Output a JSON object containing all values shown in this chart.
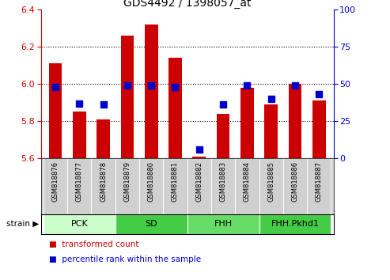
{
  "title": "GDS4492 / 1398057_at",
  "samples": [
    "GSM818876",
    "GSM818877",
    "GSM818878",
    "GSM818879",
    "GSM818880",
    "GSM818881",
    "GSM818882",
    "GSM818883",
    "GSM818884",
    "GSM818885",
    "GSM818886",
    "GSM818887"
  ],
  "transformed_count": [
    6.11,
    5.85,
    5.81,
    6.26,
    6.32,
    6.14,
    5.61,
    5.84,
    5.98,
    5.89,
    6.0,
    5.91
  ],
  "percentile_rank": [
    48,
    37,
    36,
    49,
    49,
    48,
    6,
    36,
    49,
    40,
    49,
    43
  ],
  "bar_bottom": 5.6,
  "ylim_left": [
    5.6,
    6.4
  ],
  "ylim_right": [
    0,
    100
  ],
  "yticks_left": [
    5.6,
    5.8,
    6.0,
    6.2,
    6.4
  ],
  "yticks_right": [
    0,
    25,
    50,
    75,
    100
  ],
  "bar_color": "#cc0000",
  "dot_color": "#0000cc",
  "groups": [
    {
      "label": "PCK",
      "start": 0,
      "end": 3,
      "color": "#ccffcc"
    },
    {
      "label": "SD",
      "start": 3,
      "end": 6,
      "color": "#44cc44"
    },
    {
      "label": "FHH",
      "start": 6,
      "end": 9,
      "color": "#66dd66"
    },
    {
      "label": "FHH.Pkhd1",
      "start": 9,
      "end": 12,
      "color": "#44cc44"
    }
  ],
  "left_axis_color": "#cc0000",
  "right_axis_color": "#0000cc",
  "tick_area_bg": "#d0d0d0",
  "legend_items": [
    {
      "label": "transformed count",
      "color": "#cc0000"
    },
    {
      "label": "percentile rank within the sample",
      "color": "#0000cc"
    }
  ],
  "strain_label": "strain",
  "dot_size": 40,
  "dot_marker": "s",
  "grid_yticks": [
    5.8,
    6.0,
    6.2
  ]
}
